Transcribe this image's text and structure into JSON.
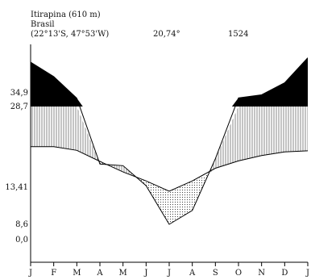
{
  "header": {
    "station": "Itirapina (610 m)",
    "country": "Brasil",
    "coords": "(22°13'S, 47°53'W)",
    "mean_temp": "20,74°",
    "annual_precip": "1524"
  },
  "chart_data": {
    "type": "area",
    "chart_kind": "climate-diagram (Walter-Lieth style)",
    "categories": [
      "J",
      "F",
      "M",
      "A",
      "M",
      "J",
      "J",
      "A",
      "S",
      "O",
      "N",
      "D",
      "J"
    ],
    "y_tick_labels": [
      "34,9",
      "28,7",
      "13,41",
      "8,6",
      "0,0"
    ],
    "y_tick_values": [
      34.9,
      28.7,
      13.41,
      8.6,
      0.0
    ],
    "series": [
      {
        "values": [
          39.8,
          37.5,
          32.5,
          17.8,
          17.5,
          13.7,
          8.6,
          10.4,
          18.8,
          32.6,
          34.0,
          36.5,
          40.5
        ]
      },
      {
        "values": [
          21.1,
          21.1,
          20.4,
          18.3,
          16.3,
          14.6,
          12.9,
          14.6,
          17.0,
          18.4,
          19.4,
          20.1,
          20.3
        ]
      }
    ],
    "fills": {
      "humid": "vertical-hatch",
      "arid": "dotted",
      "above_cut": "black"
    },
    "grid": false
  }
}
